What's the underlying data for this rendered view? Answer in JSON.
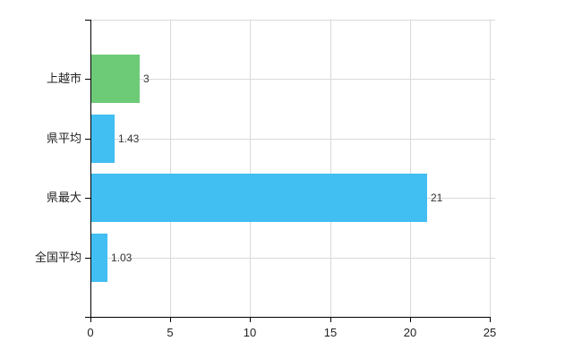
{
  "chart_data": {
    "type": "bar",
    "orientation": "horizontal",
    "title": "",
    "categories": [
      "上越市",
      "県平均",
      "県最大",
      "全国平均"
    ],
    "values": [
      3,
      1.43,
      21,
      1.03
    ],
    "value_labels": [
      "3",
      "1.43",
      "21",
      "1.03"
    ],
    "bar_colors": [
      "#6dcb77",
      "#41bef2",
      "#41bef2",
      "#41bef2"
    ],
    "xlim": [
      0,
      25
    ],
    "x_ticks": [
      0,
      5,
      10,
      15,
      20,
      25
    ],
    "x_tick_labels": [
      "0",
      "5",
      "10",
      "15",
      "20",
      "25"
    ],
    "grid": true,
    "legend_position": "none"
  },
  "colors": {
    "bar_green": "#6dcb77",
    "bar_blue": "#41bef2",
    "gridline": "#d9d9d9",
    "axis": "#000000",
    "label_text": "#333333",
    "background": "#ffffff"
  }
}
